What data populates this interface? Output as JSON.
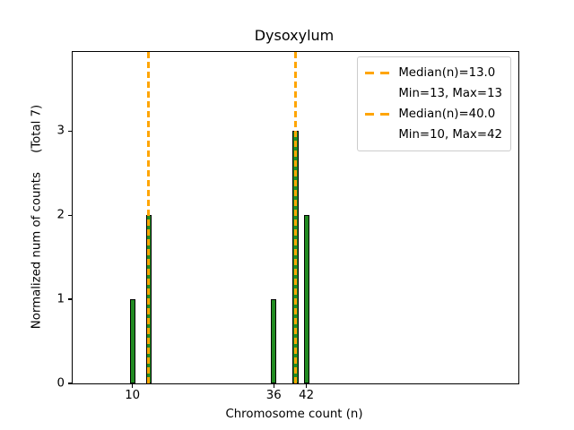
{
  "colors": {
    "background": "#ffffff",
    "bar_fill": "#228B22",
    "bar_edge": "#000000",
    "median_line": "#FFA500",
    "axis": "#000000",
    "text": "#000000",
    "legend_border": "#cccccc"
  },
  "chart_data": {
    "type": "bar",
    "title": "Dysoxylum",
    "xlabel": "Chromosome count (n)",
    "ylabel": "Normalized num of counts     (Total 7)",
    "total_counts_label": "(Total 7)",
    "bars": [
      {
        "x": 10,
        "height": 1
      },
      {
        "x": 13,
        "height": 2
      },
      {
        "x": 36,
        "height": 1
      },
      {
        "x": 40,
        "height": 3
      },
      {
        "x": 42,
        "height": 2
      }
    ],
    "bar_width_units": 1,
    "median_lines": [
      {
        "x": 13,
        "label": "Median(n)=13.0"
      },
      {
        "x": 40,
        "label": "Median(n)=40.0"
      }
    ],
    "xlim": [
      -1,
      81
    ],
    "ylim": [
      0,
      3.94
    ],
    "xticks": [
      "10",
      "36",
      "42"
    ],
    "xtick_values": [
      10,
      36,
      42
    ],
    "yticks": [
      "0",
      "1",
      "2",
      "3"
    ],
    "ytick_values": [
      0,
      1,
      2,
      3
    ],
    "grid": false,
    "legend": {
      "position": "upper right",
      "entries": [
        {
          "sample": "dashed-line",
          "label": "Median(n)=13.0"
        },
        {
          "sample": "none",
          "label": "Min=13, Max=13"
        },
        {
          "sample": "dashed-line",
          "label": "Median(n)=40.0"
        },
        {
          "sample": "none",
          "label": "Min=10, Max=42"
        }
      ]
    }
  }
}
